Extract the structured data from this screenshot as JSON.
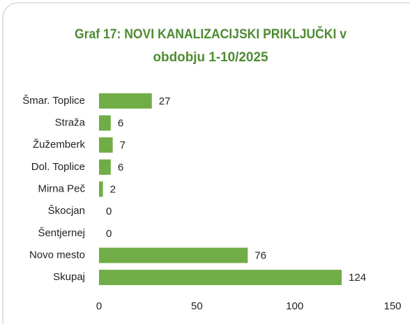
{
  "chart_data": {
    "type": "bar",
    "orientation": "horizontal",
    "title": [
      "Graf 17: NOVI KANALIZACIJSKI PRIKLJUČKI v",
      "obdobju 1-10/2025"
    ],
    "categories": [
      "Šmar. Toplice",
      "Straža",
      "Žužemberk",
      "Dol. Toplice",
      "Mirna Peč",
      "Škocjan",
      "Šentjernej",
      "Novo mesto",
      "Skupaj"
    ],
    "values": [
      27,
      6,
      7,
      6,
      2,
      0,
      0,
      76,
      124
    ],
    "color": "#70ad47",
    "xlim": [
      0,
      150
    ],
    "xticks": [
      0,
      50,
      100,
      150
    ],
    "grid": false
  }
}
